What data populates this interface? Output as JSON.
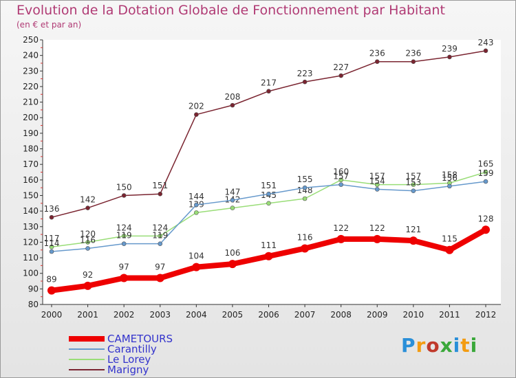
{
  "title": "Evolution de la Dotation Globale de Fonctionnement par Habitant",
  "subtitle": "(en € et par an)",
  "logo": {
    "text": "Proxiti",
    "colors": [
      "#2a8fd8",
      "#f39c12",
      "#c0392b",
      "#3aa83a",
      "#2a8fd8",
      "#f39c12",
      "#3aa83a"
    ]
  },
  "chart_data": {
    "type": "line",
    "x": [
      "2000",
      "2001",
      "2002",
      "2003",
      "2004",
      "2005",
      "2006",
      "2007",
      "2008",
      "2009",
      "2010",
      "2011",
      "2012"
    ],
    "ylim": [
      80,
      250
    ],
    "yticks": [
      80,
      90,
      100,
      110,
      120,
      130,
      140,
      150,
      160,
      170,
      180,
      190,
      200,
      210,
      220,
      230,
      240,
      250
    ],
    "grid": false,
    "series": [
      {
        "name": "Marigny",
        "color": "#7a2430",
        "values": [
          136,
          142,
          150,
          151,
          202,
          208,
          217,
          223,
          227,
          236,
          236,
          239,
          243
        ],
        "labels": [
          "136",
          "142",
          "150",
          "151",
          "202",
          "208",
          "217",
          "223",
          "227",
          "236",
          "236",
          "239",
          "243"
        ]
      },
      {
        "name": "Le Lorey",
        "color": "#99dd77",
        "values": [
          117,
          120,
          124,
          124,
          139,
          142,
          145,
          148,
          160,
          157,
          157,
          158,
          165
        ],
        "labels": [
          "117",
          "120",
          "124",
          "124",
          "139",
          "142",
          "145",
          "148",
          "160",
          "157",
          "157",
          "158",
          "165"
        ]
      },
      {
        "name": "Carantilly",
        "color": "#6699cc",
        "values": [
          114,
          116,
          119,
          119,
          144,
          147,
          151,
          155,
          157,
          154,
          153,
          156,
          159
        ],
        "labels": [
          "114",
          "116",
          "119",
          "119",
          "144",
          "147",
          "151",
          "155",
          "157",
          "154",
          "153",
          "156",
          "159"
        ]
      },
      {
        "name": "CAMETOURS",
        "color": "#ee0000",
        "values": [
          89,
          92,
          97,
          97,
          104,
          106,
          111,
          116,
          122,
          122,
          121,
          115,
          128
        ],
        "labels": [
          "89",
          "92",
          "97",
          "97",
          "104",
          "106",
          "111",
          "116",
          "122",
          "122",
          "121",
          "115",
          "128"
        ]
      }
    ],
    "legend": [
      "CAMETOURS",
      "Carantilly",
      "Le Lorey",
      "Marigny"
    ],
    "legend_position": "bottom-left"
  }
}
